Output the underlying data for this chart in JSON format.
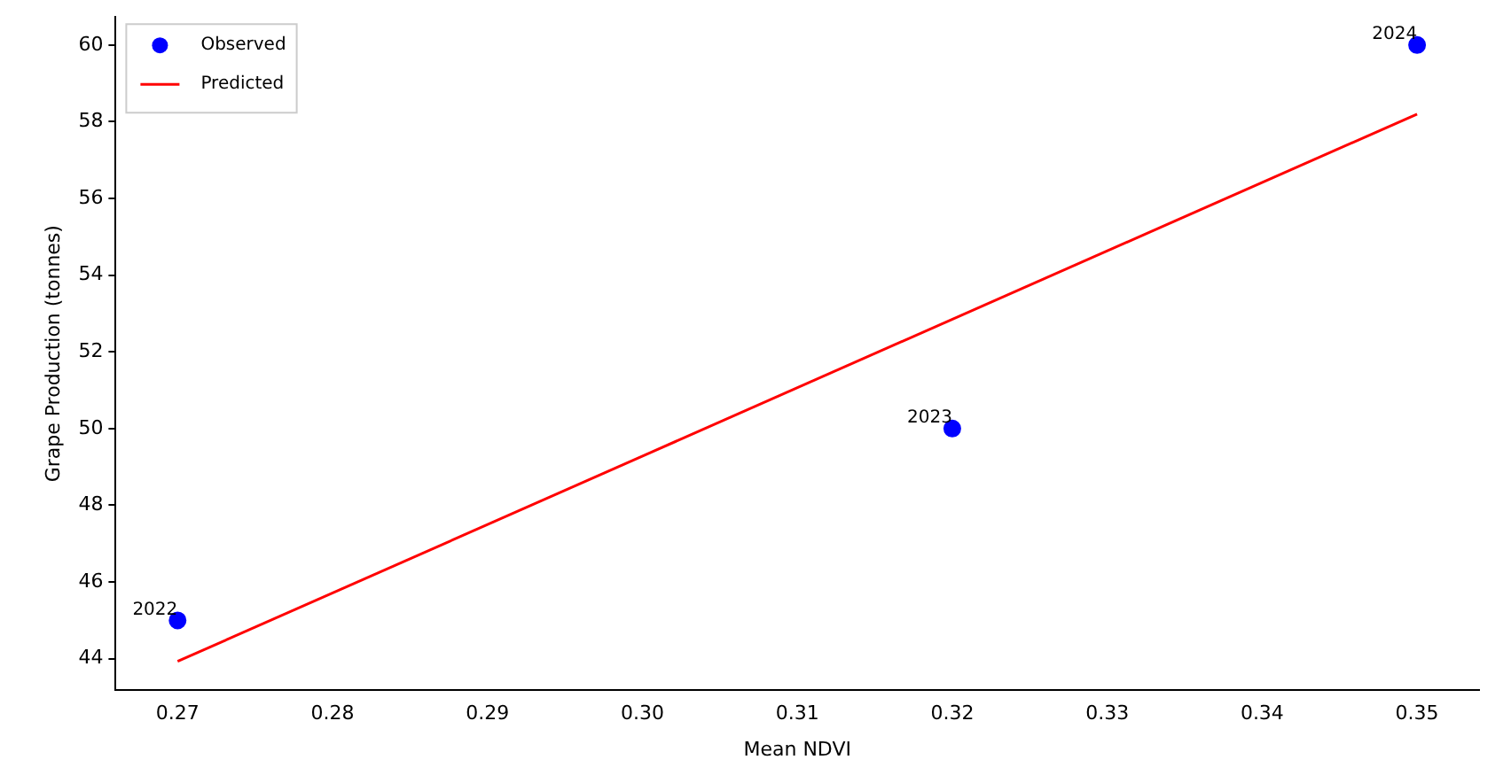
{
  "chart_data": {
    "type": "scatter",
    "xlabel": "Mean NDVI",
    "ylabel": "Grape Production (tonnes)",
    "series": [
      {
        "name": "Observed",
        "color": "#0000ff",
        "type": "scatter",
        "marker": "circle",
        "x": [
          0.27,
          0.32,
          0.35
        ],
        "values": [
          45,
          50,
          60
        ]
      },
      {
        "name": "Predicted",
        "color": "#ff0000",
        "type": "line",
        "marker": "none",
        "x": [
          0.27,
          0.35
        ],
        "values": [
          43.93,
          58.2
        ]
      }
    ],
    "annotations": [
      {
        "text": "2022",
        "x": 0.27,
        "y": 45
      },
      {
        "text": "2023",
        "x": 0.32,
        "y": 50
      },
      {
        "text": "2024",
        "x": 0.35,
        "y": 60
      }
    ],
    "xlim": [
      0.266,
      0.354
    ],
    "xticks": [
      {
        "value": 0.27,
        "label": "0.27"
      },
      {
        "value": 0.28,
        "label": "0.28"
      },
      {
        "value": 0.29,
        "label": "0.29"
      },
      {
        "value": 0.3,
        "label": "0.30"
      },
      {
        "value": 0.31,
        "label": "0.31"
      },
      {
        "value": 0.32,
        "label": "0.32"
      },
      {
        "value": 0.33,
        "label": "0.33"
      },
      {
        "value": 0.34,
        "label": "0.34"
      },
      {
        "value": 0.35,
        "label": "0.35"
      }
    ],
    "ylim": [
      43.18,
      60.73
    ],
    "yticks": [
      44,
      46,
      48,
      50,
      52,
      54,
      56,
      58,
      60
    ],
    "grid": false,
    "legend": "top left"
  }
}
